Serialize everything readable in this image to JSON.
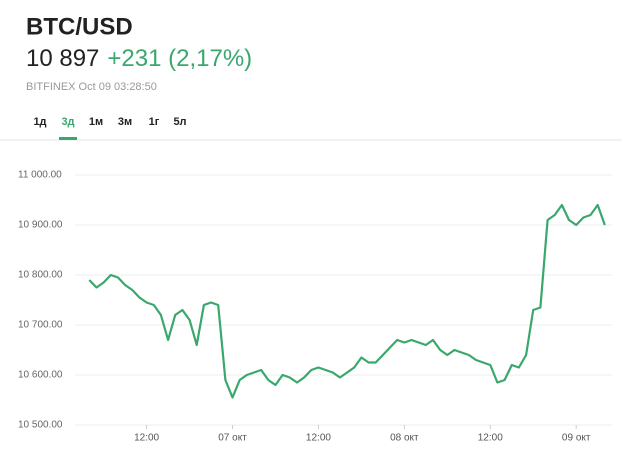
{
  "header": {
    "title": "BTC/USD",
    "price": "10 897",
    "change": "+231 (2,17%)",
    "source": "BITFINEX Oct 09 03:28:50"
  },
  "tabs": {
    "items": [
      "1д",
      "3д",
      "1м",
      "3м",
      "1г",
      "5л"
    ],
    "active": 1
  },
  "chart_data": {
    "type": "line",
    "color": "#3aa76d",
    "grid": true,
    "values": [
      10790,
      10775,
      10785,
      10800,
      10795,
      10780,
      10770,
      10755,
      10745,
      10740,
      10720,
      10670,
      10720,
      10730,
      10710,
      10660,
      10740,
      10745,
      10740,
      10590,
      10555,
      10590,
      10600,
      10605,
      10610,
      10590,
      10580,
      10600,
      10595,
      10585,
      10595,
      10610,
      10615,
      10610,
      10605,
      10595,
      10605,
      10615,
      10635,
      10625,
      10625,
      10640,
      10655,
      10670,
      10665,
      10670,
      10665,
      10660,
      10670,
      10650,
      10640,
      10650,
      10645,
      10640,
      10630,
      10625,
      10620,
      10585,
      10590,
      10620,
      10615,
      10640,
      10730,
      10735,
      10910,
      10920,
      10940,
      10910,
      10900,
      10915,
      10920,
      10940,
      10900
    ],
    "xlim": [
      -2,
      73
    ],
    "xticks": [
      {
        "value": 8,
        "label": "12:00"
      },
      {
        "value": 20,
        "label": "07 окт"
      },
      {
        "value": 32,
        "label": "12:00"
      },
      {
        "value": 44,
        "label": "08 окт"
      },
      {
        "value": 56,
        "label": "12:00"
      },
      {
        "value": 68,
        "label": "09 окт"
      }
    ],
    "ylim": [
      10500,
      11060
    ],
    "yticks": [
      {
        "value": 10500,
        "label": "10 500.00"
      },
      {
        "value": 10600,
        "label": "10 600.00"
      },
      {
        "value": 10700,
        "label": "10 700.00"
      },
      {
        "value": 10800,
        "label": "10 800.00"
      },
      {
        "value": 10900,
        "label": "10 900.00"
      },
      {
        "value": 11000,
        "label": "11 000.00"
      }
    ]
  }
}
